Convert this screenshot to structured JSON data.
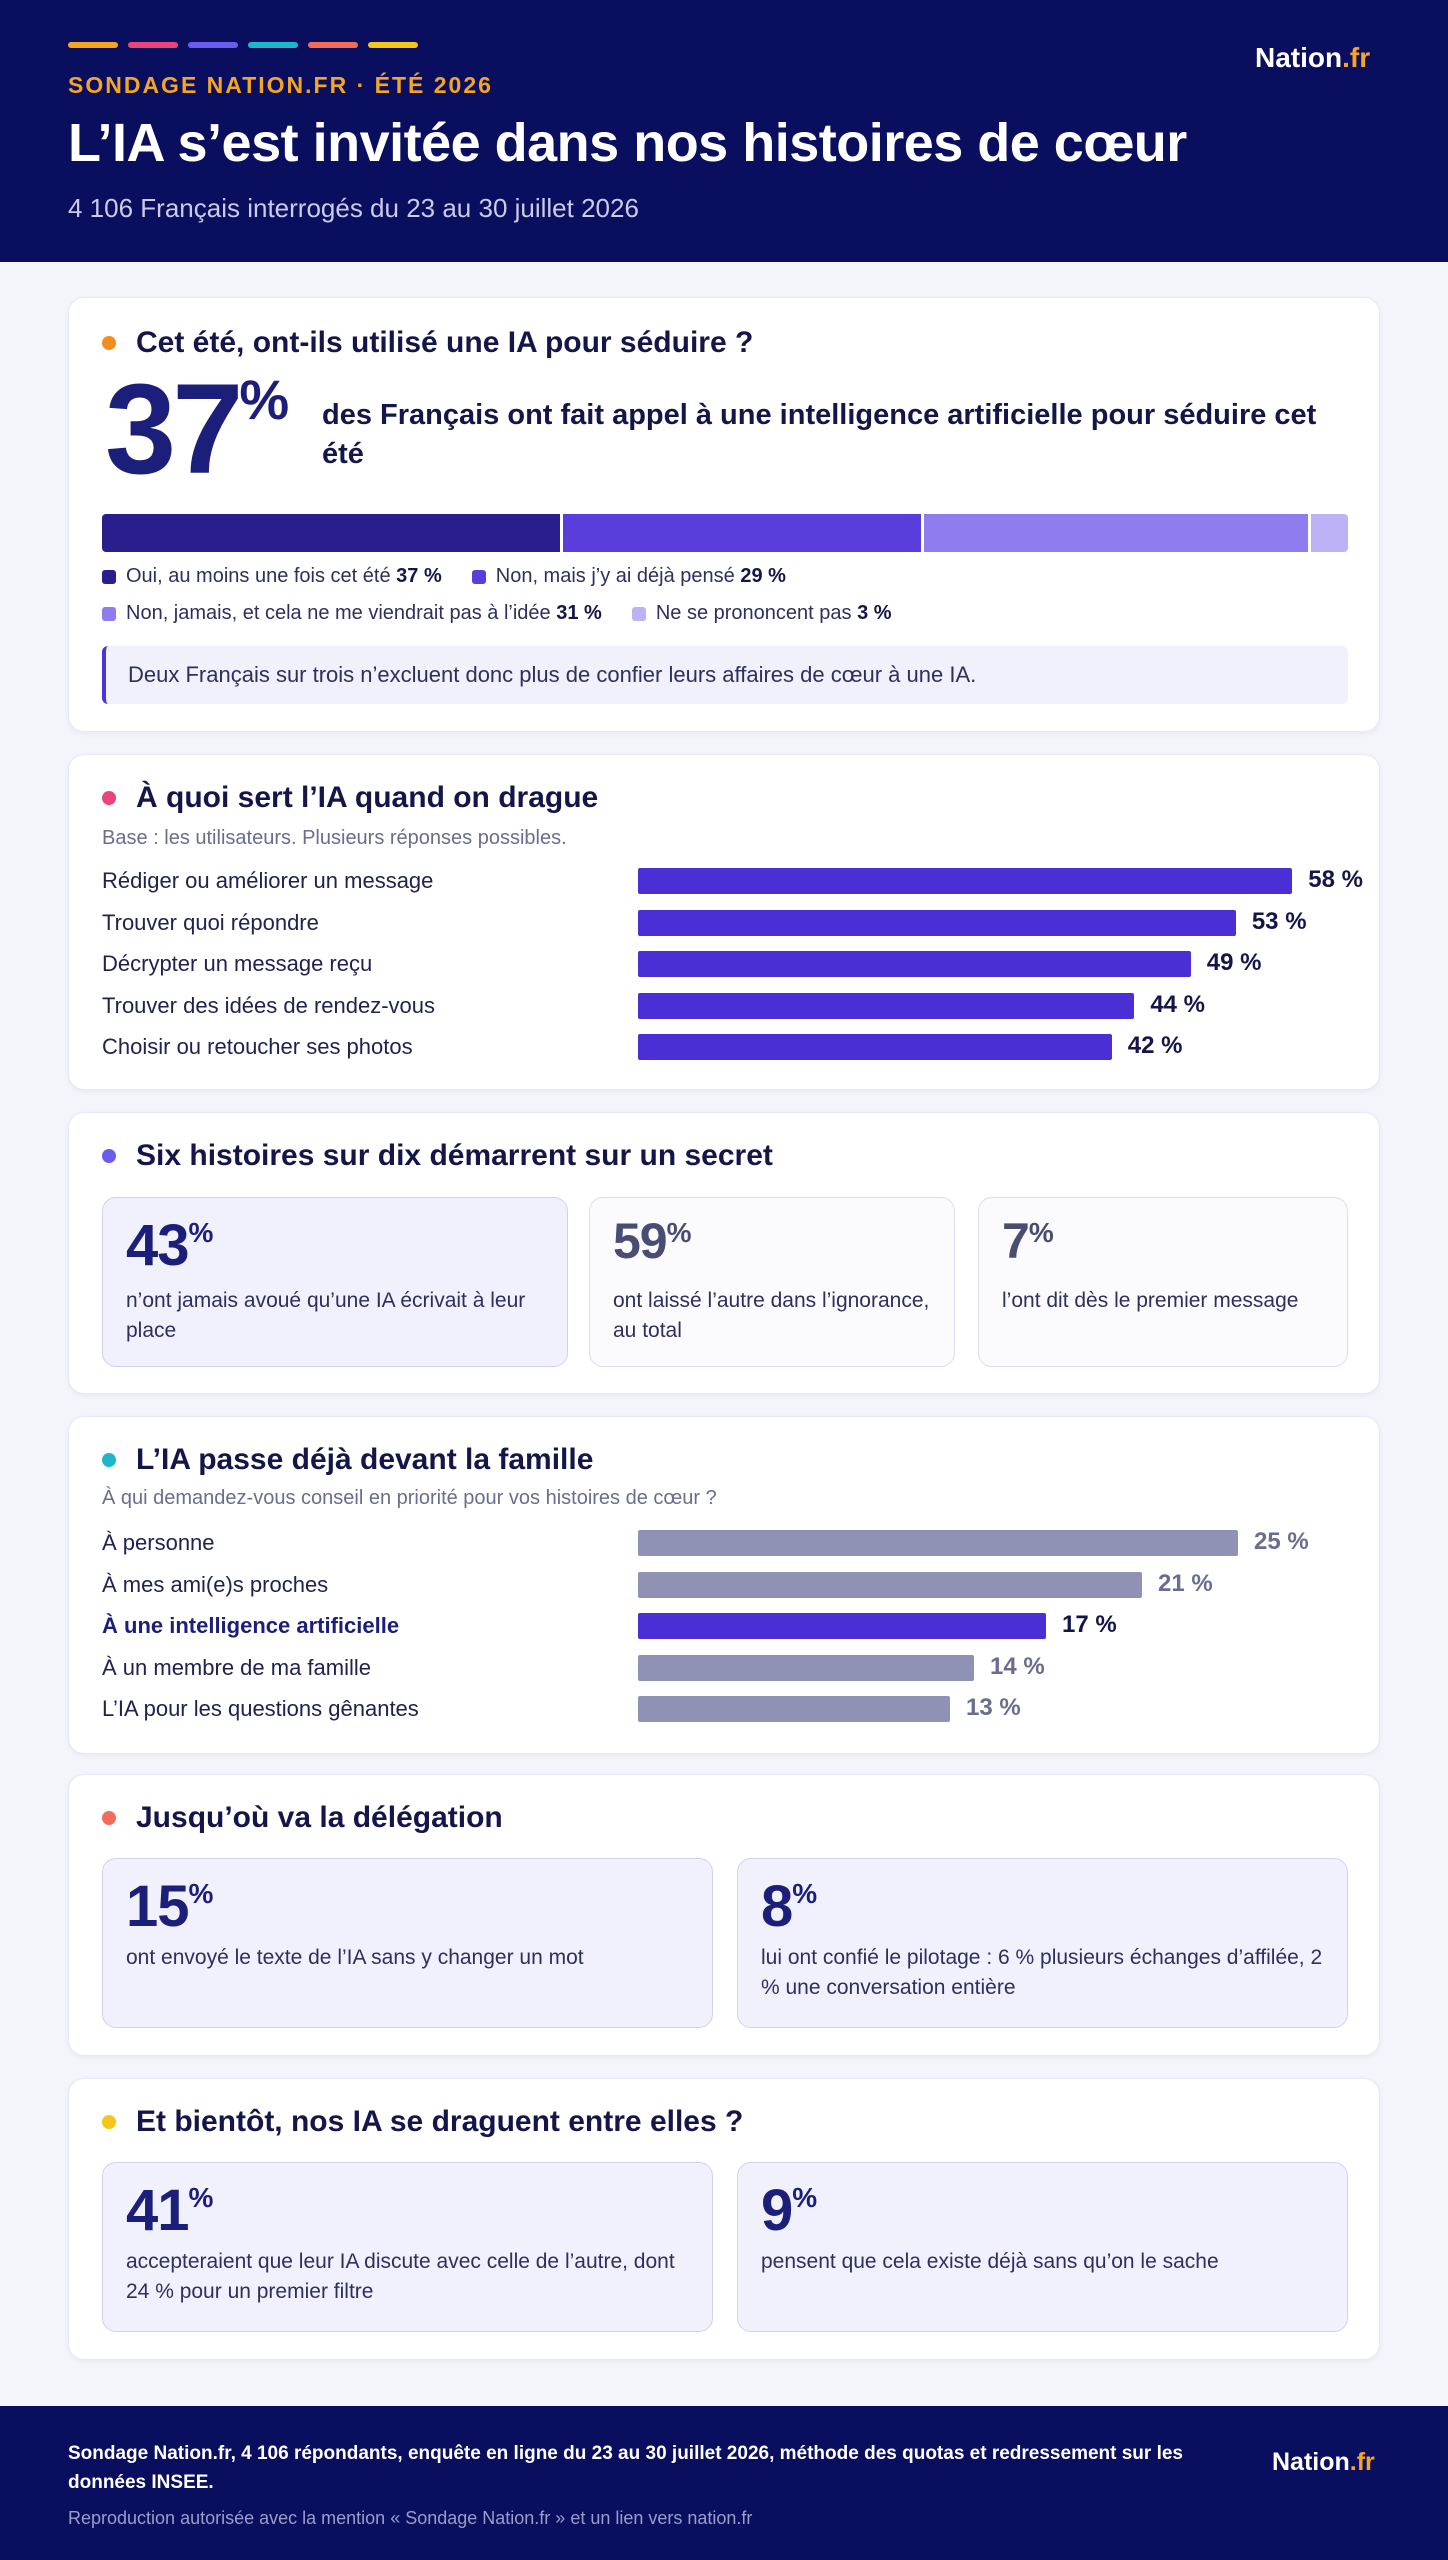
{
  "header": {
    "stripe_colors": [
      "#f5a524",
      "#e8457a",
      "#6b5cf0",
      "#1fb6c9",
      "#f06d5d",
      "#f5c518"
    ],
    "kicker": "SONDAGE NATION.FR · ÉTÉ 2026",
    "title": "L’IA s’est invitée dans nos histoires de cœur",
    "subtitle": "4 106 Français interrogés du 23 au 30 juillet 2026",
    "brand_name": "Nation",
    "brand_tld": ".fr"
  },
  "section1": {
    "dot_color": "#f28c1e",
    "title": "Cet été, ont-ils utilisé une IA pour séduire ?",
    "big_value": "37",
    "big_unit": "%",
    "lead": "des Français ont fait appel à une intelligence artificielle pour séduire cet été",
    "stack": [
      {
        "label": "Oui, au moins une fois cet été",
        "value": 37,
        "value_label": "37 %",
        "color": "#2a1d8c"
      },
      {
        "label": "Non, mais j’y ai déjà pensé",
        "value": 29,
        "value_label": "29 %",
        "color": "#5a3ddb"
      },
      {
        "label": "Non, jamais, et cela ne me viendrait pas à l’idée",
        "value": 31,
        "value_label": "31 %",
        "color": "#8f7df0"
      },
      {
        "label": "Ne se prononcent pas",
        "value": 3,
        "value_label": "3 %",
        "color": "#bdb2f6"
      }
    ],
    "callout": "Deux Français sur trois n’excluent donc plus de confier leurs affaires de cœur à une IA."
  },
  "section2": {
    "dot_color": "#e8457a",
    "title": "À quoi sert l’IA quand on drague",
    "note": "Base : les utilisateurs. Plusieurs réponses possibles.",
    "bar_color": "#4b2fd6",
    "items": [
      {
        "label": "Rédiger ou améliorer un message",
        "value": 58,
        "value_label": "58 %"
      },
      {
        "label": "Trouver quoi répondre",
        "value": 53,
        "value_label": "53 %"
      },
      {
        "label": "Décrypter un message reçu",
        "value": 49,
        "value_label": "49 %"
      },
      {
        "label": "Trouver des idées de rendez-vous",
        "value": 44,
        "value_label": "44 %"
      },
      {
        "label": "Choisir ou retoucher ses photos",
        "value": 42,
        "value_label": "42 %"
      }
    ]
  },
  "section3": {
    "dot_color": "#6b5cf0",
    "title": "Six histoires sur dix démarrent sur un secret",
    "stats": [
      {
        "value": "43",
        "unit": "%",
        "text": "n’ont jamais avoué qu’une IA écrivait à leur place"
      },
      {
        "value": "59",
        "unit": "%",
        "text": "ont laissé l’autre dans l’ignorance, au total"
      },
      {
        "value": "7",
        "unit": "%",
        "text": "l’ont dit dès le premier message"
      }
    ]
  },
  "section4": {
    "dot_color": "#1fb6c9",
    "title": "L’IA passe déjà devant la famille",
    "note": "À qui demandez-vous conseil en priorité pour vos histoires de cœur ?",
    "bar_color": "#8f92b4",
    "highlight_color": "#4b2fd6",
    "items": [
      {
        "label": "À personne",
        "value": 25,
        "value_label": "25 %",
        "highlight": false
      },
      {
        "label": "À mes ami(e)s proches",
        "value": 21,
        "value_label": "21 %",
        "highlight": false
      },
      {
        "label": "À une intelligence artificielle",
        "value": 17,
        "value_label": "17 %",
        "highlight": true
      },
      {
        "label": "À un membre de ma famille",
        "value": 14,
        "value_label": "14 %",
        "highlight": false
      },
      {
        "label": "L’IA pour les questions gênantes",
        "value": 13,
        "value_label": "13 %",
        "highlight": false
      }
    ]
  },
  "section5": {
    "dot_color": "#f06d5d",
    "title": "Jusqu’où va la délégation",
    "stats": [
      {
        "value": "15",
        "unit": "%",
        "text": "ont envoyé le texte de l’IA sans y changer un mot"
      },
      {
        "value": "8",
        "unit": "%",
        "text": "lui ont confié le pilotage : 6 % plusieurs échanges d’affilée, 2 % une conversation entière"
      }
    ]
  },
  "section6": {
    "dot_color": "#f5c518",
    "title": "Et bientôt, nos IA se draguent entre elles ?",
    "stats": [
      {
        "value": "41",
        "unit": "%",
        "text": "accepteraient que leur IA discute avec celle de l’autre, dont 24 % pour un premier filtre"
      },
      {
        "value": "9",
        "unit": "%",
        "text": "pensent que cela existe déjà sans qu’on le sache"
      }
    ]
  },
  "footer": {
    "method": "Sondage Nation.fr, 4 106 répondants, enquête en ligne du 23 au 30 juillet 2026, méthode des quotas et redressement sur les données INSEE.",
    "reproduction": "Reproduction autorisée avec la mention « Sondage Nation.fr » et un lien vers nation.fr",
    "brand_name": "Nation",
    "brand_tld": ".fr"
  }
}
